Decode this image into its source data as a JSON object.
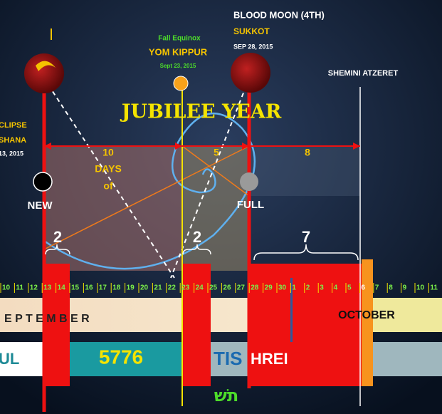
{
  "blood_moon": {
    "title": "BLOOD MOON (4TH)",
    "feast": "SUKKOT",
    "date": "SEP 28, 2015"
  },
  "equinox": {
    "label": "Fall Equinox",
    "feast": "YOM KIPPUR",
    "date": "Sept 23, 2015"
  },
  "shemini": "SHEMINI ATZERET",
  "jubilee": "JUBILEE YEAR",
  "eclipse": {
    "title": "CLIPSE",
    "feast": "SHANA",
    "date": "13, 2015"
  },
  "spans": {
    "first": "10",
    "first_label": "DAYS",
    "first_of": "of",
    "second": "5",
    "third": "8"
  },
  "moons": {
    "new": "NEW",
    "full": "FULL"
  },
  "braces": [
    "2",
    "2",
    "7"
  ],
  "days": [
    10,
    11,
    12,
    13,
    14,
    15,
    16,
    17,
    18,
    19,
    20,
    21,
    22,
    23,
    24,
    25,
    26,
    27,
    28,
    29,
    30,
    1,
    2,
    3,
    4,
    5,
    6,
    7,
    8,
    9,
    10,
    11
  ],
  "months": {
    "september": "E P T E M B E R",
    "october": "OCTOBER"
  },
  "hebrew": {
    "month_prev": "UL",
    "year": "5776",
    "tishrei_a": "TIS",
    "tishrei_b": "HREI",
    "letters": "תשׁ"
  }
}
